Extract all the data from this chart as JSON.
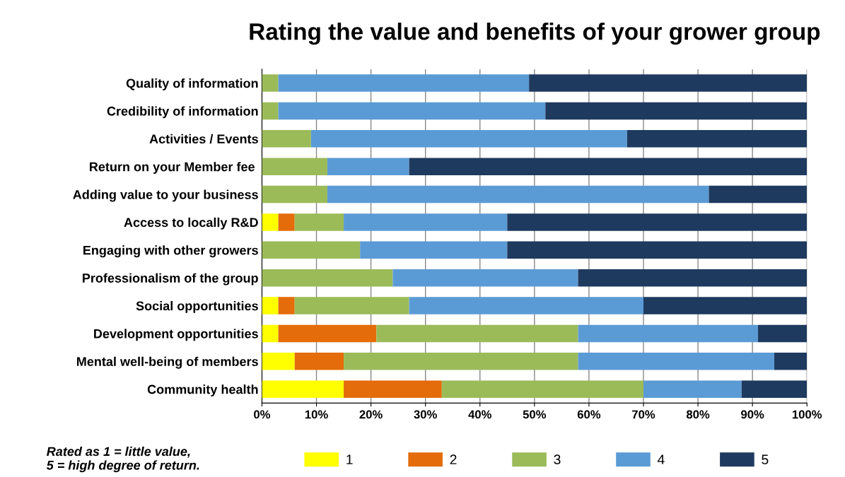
{
  "chart_data": {
    "type": "bar",
    "orientation": "horizontal",
    "stacked": true,
    "title": "Rating the value and benefits of your grower group",
    "categories": [
      "Quality of information",
      "Credibility of information",
      "Activities / Events",
      "Return on your Member fee ",
      "Adding value to your business",
      "Access to locally R&D",
      "Engaging with other growers",
      "Professionalism of the group",
      "Social opportunities",
      "Development opportunities",
      "Mental well-being of members",
      "Community health"
    ],
    "series": [
      {
        "name": "1",
        "color": "#ffff00",
        "values": [
          0,
          0,
          0,
          0,
          0,
          3,
          0,
          0,
          3,
          3,
          6,
          15
        ]
      },
      {
        "name": "2",
        "color": "#e46c0a",
        "values": [
          0,
          0,
          0,
          0,
          0,
          3,
          0,
          0,
          3,
          18,
          9,
          18
        ]
      },
      {
        "name": "3",
        "color": "#9bbb59",
        "values": [
          3,
          3,
          9,
          12,
          12,
          9,
          18,
          24,
          21,
          37,
          43,
          37
        ]
      },
      {
        "name": "4",
        "color": "#5b9bd5",
        "values": [
          46,
          49,
          58,
          15,
          70,
          30,
          27,
          34,
          43,
          33,
          36,
          18
        ]
      },
      {
        "name": "5",
        "color": "#1f3a5f",
        "values": [
          51,
          48,
          33,
          73,
          18,
          55,
          55,
          42,
          30,
          9,
          6,
          12
        ]
      }
    ],
    "xlim": [
      0,
      100
    ],
    "xticks": [
      {
        "value": 0,
        "label": "0%"
      },
      {
        "value": 10,
        "label": "10%"
      },
      {
        "value": 20,
        "label": "20%"
      },
      {
        "value": 30,
        "label": "30%"
      },
      {
        "value": 40,
        "label": "40%"
      },
      {
        "value": 50,
        "label": "50%"
      },
      {
        "value": 60,
        "label": "60%"
      },
      {
        "value": 70,
        "label": "70%"
      },
      {
        "value": 80,
        "label": "80%"
      },
      {
        "value": 90,
        "label": "90%"
      },
      {
        "value": 100,
        "label": "100%"
      }
    ],
    "grid": "x",
    "legend": "bottom",
    "annotations": [
      "Rated as 1 = little value,\n5 = high degree of return."
    ]
  }
}
